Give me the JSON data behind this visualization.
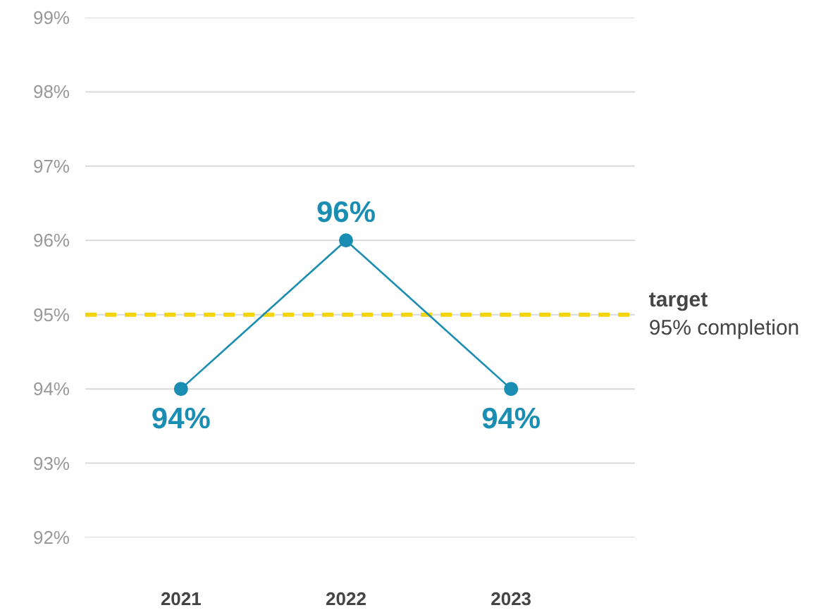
{
  "chart_data": {
    "type": "line",
    "categories": [
      "2021",
      "2022",
      "2023"
    ],
    "series": [
      {
        "color": "#1a8db3",
        "values": [
          94,
          96,
          94
        ],
        "value_labels": [
          "94%",
          "96%",
          "94%"
        ]
      }
    ],
    "ylim": [
      92,
      99
    ],
    "yticks": [
      {
        "value": 92,
        "label": "92%"
      },
      {
        "value": 93,
        "label": "93%"
      },
      {
        "value": 94,
        "label": "94%"
      },
      {
        "value": 95,
        "label": "95%"
      },
      {
        "value": 96,
        "label": "96%"
      },
      {
        "value": 97,
        "label": "97%"
      },
      {
        "value": 98,
        "label": "98%"
      },
      {
        "value": 99,
        "label": "99%"
      }
    ],
    "grid": "y",
    "marker": "circle",
    "line_style": "solid",
    "ref_lines": [
      {
        "axis": "y",
        "value": 95,
        "label": "target\n95% completion",
        "color": "#f2d40f",
        "line_style": "dashed"
      }
    ]
  }
}
